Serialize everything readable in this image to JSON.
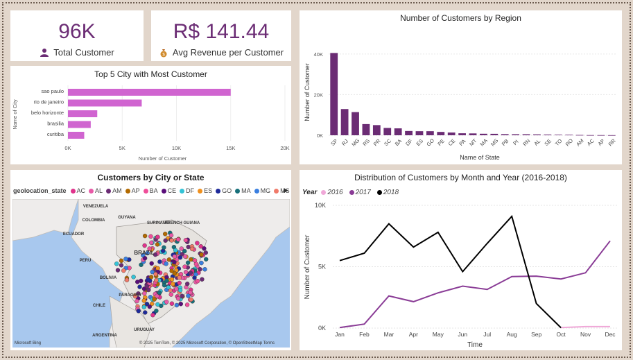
{
  "kpis": [
    {
      "value": "96K",
      "label": "Total Customer",
      "icon": "user-icon"
    },
    {
      "value": "R$ 141.44",
      "label": "Avg Revenue per Customer",
      "icon": "money-bag-icon"
    }
  ],
  "charts": {
    "top_cities_title": "Top 5 City with Most Customer",
    "region_title": "Number of Customers by Region",
    "map_title": "Customers by City or State",
    "monthly_title": "Distribution of Customers by Month and Year (2016-2018)"
  },
  "map": {
    "legend_title": "geolocation_state",
    "legend": [
      {
        "code": "AC",
        "color": "#e0338c"
      },
      {
        "code": "AL",
        "color": "#e85aa7"
      },
      {
        "code": "AM",
        "color": "#6b2c74"
      },
      {
        "code": "AP",
        "color": "#b26a00"
      },
      {
        "code": "BA",
        "color": "#ef4e9a"
      },
      {
        "code": "CE",
        "color": "#5a0f7a"
      },
      {
        "code": "DF",
        "color": "#34c3d6"
      },
      {
        "code": "ES",
        "color": "#f0911f"
      },
      {
        "code": "GO",
        "color": "#1e2a9a"
      },
      {
        "code": "MA",
        "color": "#17707a"
      },
      {
        "code": "MG",
        "color": "#3a7fe0"
      },
      {
        "code": "MS",
        "color": "#f07a6a"
      }
    ],
    "labels": [
      "VENEZUELA",
      "GUYANA",
      "COLOMBIA",
      "SURINAME",
      "FRENCH GUIANA",
      "ECUADOR",
      "PERU",
      "BRAZIL",
      "BOLIVIA",
      "PARAGUAY",
      "CHILE",
      "URUGUAY",
      "ARGENTINA"
    ],
    "logo": "Microsoft Bing",
    "credit": "© 2025 TomTom, © 2025 Microsoft Corporation, © OpenStreetMap Terms"
  },
  "chart_data": [
    {
      "type": "bar",
      "orientation": "horizontal",
      "title": "Top 5 City with Most Customer",
      "categories": [
        "sao paulo",
        "rio de janeiro",
        "belo horizonte",
        "brasilia",
        "curitiba"
      ],
      "values": [
        15000,
        6800,
        2700,
        2100,
        1500
      ],
      "xlabel": "Number of Customer",
      "ylabel": "Name of City",
      "xlim": [
        0,
        20000
      ],
      "ticks": [
        "0K",
        "5K",
        "10K",
        "15K",
        "20K"
      ],
      "color": "#d064d0"
    },
    {
      "type": "bar",
      "title": "Number of Customers by Region",
      "categories": [
        "SP",
        "RJ",
        "MG",
        "RS",
        "PR",
        "SC",
        "BA",
        "DF",
        "ES",
        "GO",
        "PE",
        "CE",
        "PA",
        "MT",
        "MA",
        "MS",
        "PB",
        "PI",
        "RN",
        "AL",
        "SE",
        "TO",
        "RO",
        "AM",
        "AC",
        "AP",
        "RR"
      ],
      "values": [
        40500,
        12900,
        11400,
        5500,
        5000,
        3600,
        3400,
        2100,
        2000,
        2000,
        1650,
        1350,
        980,
        910,
        750,
        720,
        540,
        500,
        490,
        420,
        350,
        280,
        250,
        150,
        80,
        70,
        50
      ],
      "xlabel": "Name of State",
      "ylabel": "Number of Customer",
      "ylim": [
        0,
        42000
      ],
      "ticks": [
        "0K",
        "20K",
        "40K"
      ],
      "color": "#6b2c74"
    },
    {
      "type": "line",
      "title": "Distribution of Customers by Month and Year (2016-2018)",
      "x": [
        "Jan",
        "Feb",
        "Mar",
        "Apr",
        "May",
        "Jun",
        "Jul",
        "Aug",
        "Sep",
        "Oct",
        "Nov",
        "Dec"
      ],
      "xlabel": "Time",
      "ylabel": "Number of Customer",
      "legend_title": "Year",
      "ylim": [
        0,
        10000
      ],
      "ticks": [
        "0K",
        "5K",
        "10K"
      ],
      "series": [
        {
          "name": "2016",
          "color": "#f0a8d8",
          "values": [
            null,
            null,
            null,
            null,
            null,
            null,
            null,
            null,
            null,
            40,
            120,
            120
          ]
        },
        {
          "name": "2017",
          "color": "#8a3c96",
          "values": [
            40,
            330,
            2620,
            2150,
            2870,
            3420,
            3150,
            4200,
            4230,
            4000,
            4500,
            7100
          ]
        },
        {
          "name": "2018",
          "color": "#000000",
          "values": [
            5500,
            6100,
            8500,
            6600,
            7800,
            4600,
            6900,
            9100,
            2000,
            30,
            null,
            null
          ]
        }
      ]
    }
  ]
}
